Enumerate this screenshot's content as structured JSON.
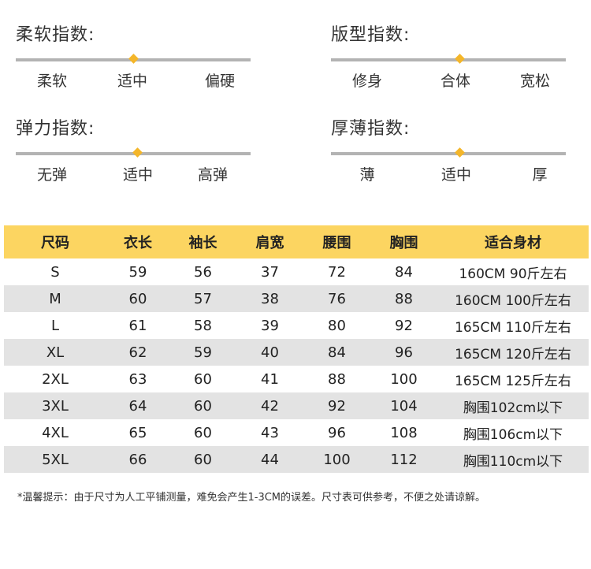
{
  "indices": [
    {
      "title": "柔软指数:",
      "labels": [
        "柔软",
        "适中",
        "偏硬"
      ],
      "level": 0.5
    },
    {
      "title": "版型指数:",
      "labels": [
        "修身",
        "合体",
        "宽松"
      ],
      "level": 0.55
    },
    {
      "title": "弹力指数:",
      "labels": [
        "无弹",
        "适中",
        "高弹"
      ],
      "level": 0.52
    },
    {
      "title": "厚薄指数:",
      "labels": [
        "薄",
        "适中",
        "厚"
      ],
      "level": 0.55
    }
  ],
  "table": {
    "headers": [
      "尺码",
      "衣长",
      "袖长",
      "肩宽",
      "腰围",
      "胸围",
      "适合身材"
    ],
    "rows": [
      [
        "S",
        "59",
        "56",
        "37",
        "72",
        "84",
        "160CM  90斤左右"
      ],
      [
        "M",
        "60",
        "57",
        "38",
        "76",
        "88",
        "160CM  100斤左右"
      ],
      [
        "L",
        "61",
        "58",
        "39",
        "80",
        "92",
        "165CM  110斤左右"
      ],
      [
        "XL",
        "62",
        "59",
        "40",
        "84",
        "96",
        "165CM  120斤左右"
      ],
      [
        "2XL",
        "63",
        "60",
        "41",
        "88",
        "100",
        "165CM 125斤左右"
      ],
      [
        "3XL",
        "64",
        "60",
        "42",
        "92",
        "104",
        "胸围102cm以下"
      ],
      [
        "4XL",
        "65",
        "60",
        "43",
        "96",
        "108",
        "胸围106cm以下"
      ],
      [
        "5XL",
        "66",
        "60",
        "44",
        "100",
        "112",
        "胸围110cm以下"
      ]
    ]
  },
  "note": "*温馨提示：由于尺寸为人工平铺测量，难免会产生1-3CM的误差。尺寸表可供参考，不便之处请谅解。",
  "colors": {
    "accent": "#fcd561",
    "marker": "#f4b62a",
    "track": "#b3b3b3",
    "row_shade": "#e3e3e3"
  }
}
